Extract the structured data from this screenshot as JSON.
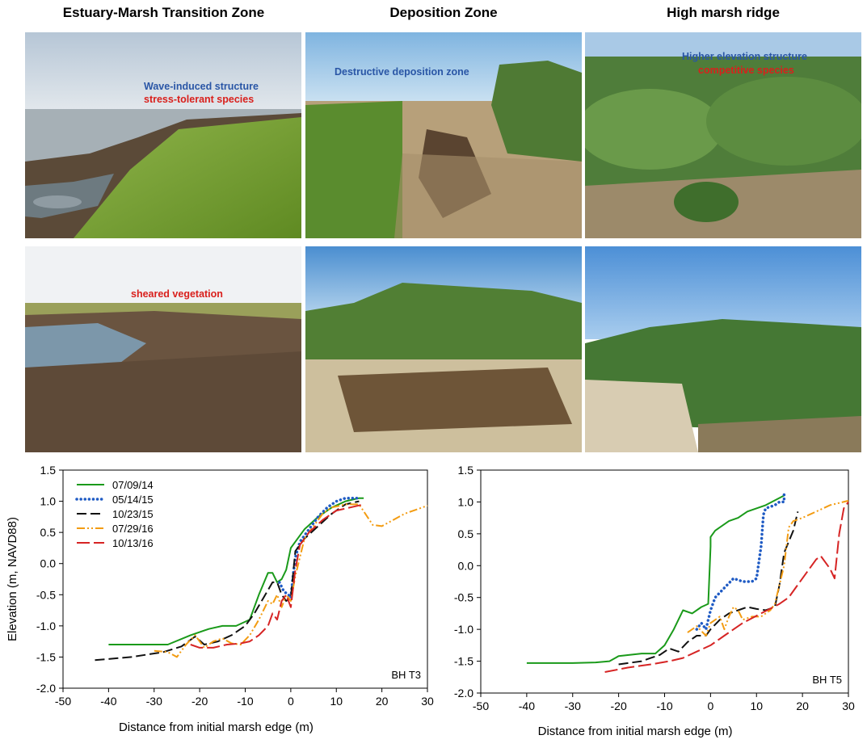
{
  "columns": [
    {
      "title": "Estuary-Marsh Transition Zone"
    },
    {
      "title": "Deposition Zone"
    },
    {
      "title": "High marsh ridge"
    }
  ],
  "photos": {
    "p1": {
      "captions": [
        {
          "text": "Wave-induced structure",
          "color": "#2a56a6"
        },
        {
          "text": "stress-tolerant species",
          "color": "#d9201c"
        }
      ]
    },
    "p2": {
      "captions": [
        {
          "text": "Destructive deposition zone",
          "color": "#2a56a6"
        }
      ]
    },
    "p3": {
      "captions": [
        {
          "text": "Higher elevation structure",
          "color": "#2a56a6"
        },
        {
          "text": "competitive species",
          "color": "#d9201c"
        }
      ]
    },
    "p4": {
      "captions": [
        {
          "text": "sheared vegetation",
          "color": "#d9201c"
        }
      ]
    },
    "p5": {
      "captions": []
    },
    "p6": {
      "captions": []
    }
  },
  "chart_data": [
    {
      "type": "line",
      "panel_label": "BH T3",
      "xlabel": "Distance from initial marsh edge (m)",
      "ylabel": "Elevation (m, NAVD88)",
      "xlim": [
        -50,
        30
      ],
      "ylim": [
        -2.0,
        1.5
      ],
      "xticks": [
        -50,
        -40,
        -30,
        -20,
        -10,
        0,
        10,
        20,
        30
      ],
      "yticks": [
        -2.0,
        -1.5,
        -1.0,
        -0.5,
        0.0,
        0.5,
        1.0,
        1.5
      ],
      "legend_position": "top-left",
      "series": [
        {
          "name": "07/09/14",
          "color": "#1a9a1a",
          "dash": "solid",
          "x": [
            -40,
            -27,
            -22,
            -18,
            -15,
            -12,
            -9,
            -7,
            -5,
            -4,
            -3,
            -2,
            -1,
            0,
            1,
            3,
            6,
            9,
            12,
            15,
            16
          ],
          "y": [
            -1.3,
            -1.3,
            -1.15,
            -1.05,
            -1.0,
            -1.0,
            -0.9,
            -0.5,
            -0.15,
            -0.15,
            -0.3,
            -0.25,
            -0.1,
            0.25,
            0.35,
            0.55,
            0.75,
            0.9,
            1.0,
            1.05,
            1.05
          ]
        },
        {
          "name": "05/14/15",
          "color": "#1f5bc4",
          "dash": "dot",
          "x": [
            -2.5,
            -1.5,
            -0.5,
            0,
            0.5,
            1,
            2,
            3,
            4,
            6,
            8,
            10,
            12,
            14,
            15
          ],
          "y": [
            -0.3,
            -0.45,
            -0.5,
            -0.55,
            -0.2,
            0.1,
            0.35,
            0.45,
            0.55,
            0.75,
            0.9,
            1.0,
            1.05,
            1.05,
            1.05
          ]
        },
        {
          "name": "10/23/15",
          "color": "#111111",
          "dash": "long",
          "x": [
            -43,
            -35,
            -28,
            -24,
            -21,
            -19,
            -16,
            -13,
            -10,
            -8,
            -6,
            -4,
            -3,
            -2,
            -1,
            0,
            1,
            3,
            6,
            9,
            12,
            15
          ],
          "y": [
            -1.55,
            -1.5,
            -1.42,
            -1.33,
            -1.17,
            -1.3,
            -1.25,
            -1.15,
            -1.0,
            -0.8,
            -0.55,
            -0.3,
            -0.3,
            -0.5,
            -0.6,
            -0.55,
            0.2,
            0.4,
            0.6,
            0.8,
            0.95,
            1.0
          ]
        },
        {
          "name": "07/29/16",
          "color": "#f39c12",
          "dash": "dashdotdot",
          "x": [
            -30,
            -27,
            -25,
            -23,
            -21,
            -19,
            -17,
            -15,
            -13,
            -11,
            -9,
            -7,
            -5,
            -4,
            -3,
            -2,
            -1,
            0,
            1,
            3,
            5,
            7,
            9,
            12,
            15,
            18,
            20,
            25,
            30
          ],
          "y": [
            -1.4,
            -1.42,
            -1.5,
            -1.3,
            -1.15,
            -1.35,
            -1.25,
            -1.2,
            -1.28,
            -1.3,
            -1.15,
            -0.9,
            -0.6,
            -0.65,
            -0.5,
            -0.7,
            -0.5,
            -0.6,
            -0.2,
            0.4,
            0.6,
            0.8,
            0.9,
            0.95,
            0.95,
            0.62,
            0.6,
            0.8,
            0.93
          ]
        },
        {
          "name": "10/13/16",
          "color": "#d62424",
          "dash": "dash",
          "x": [
            -22,
            -20,
            -17,
            -14,
            -11,
            -9,
            -7,
            -5,
            -4,
            -3,
            -2,
            -1,
            0,
            1,
            2,
            4,
            7,
            10,
            13,
            16
          ],
          "y": [
            -1.3,
            -1.35,
            -1.35,
            -1.3,
            -1.28,
            -1.25,
            -1.15,
            -1.0,
            -0.8,
            -0.9,
            -0.6,
            -0.5,
            -0.7,
            -0.1,
            0.3,
            0.5,
            0.7,
            0.85,
            0.9,
            0.95
          ]
        }
      ]
    },
    {
      "type": "line",
      "panel_label": "BH T5",
      "xlabel": "Distance from initial marsh edge (m)",
      "ylabel": "",
      "xlim": [
        -50,
        30
      ],
      "ylim": [
        -2.0,
        1.5
      ],
      "xticks": [
        -50,
        -40,
        -30,
        -20,
        -10,
        0,
        10,
        20,
        30
      ],
      "yticks": [
        -2.0,
        -1.5,
        -1.0,
        -0.5,
        0.0,
        0.5,
        1.0,
        1.5
      ],
      "series": [
        {
          "name": "07/09/14",
          "color": "#1a9a1a",
          "dash": "solid",
          "x": [
            -40,
            -30,
            -25,
            -22,
            -20,
            -15,
            -12,
            -10,
            -8,
            -6,
            -4,
            -2,
            -0.5,
            0,
            0,
            1,
            4,
            6,
            8,
            12,
            16
          ],
          "y": [
            -1.53,
            -1.53,
            -1.52,
            -1.5,
            -1.42,
            -1.38,
            -1.38,
            -1.25,
            -1.0,
            -0.7,
            -0.75,
            -0.65,
            -0.6,
            0.3,
            0.45,
            0.55,
            0.7,
            0.75,
            0.85,
            0.95,
            1.1
          ]
        },
        {
          "name": "05/14/15",
          "color": "#1f5bc4",
          "dash": "dot",
          "x": [
            -3,
            -2,
            -1,
            -0.5,
            0,
            1,
            3,
            5,
            7,
            9,
            10,
            11,
            11.5,
            12,
            14,
            15,
            16,
            16
          ],
          "y": [
            -1.0,
            -0.9,
            -1.0,
            -0.85,
            -0.7,
            -0.5,
            -0.35,
            -0.2,
            -0.25,
            -0.25,
            -0.2,
            0.3,
            0.8,
            0.9,
            0.95,
            1.0,
            1.0,
            1.15
          ]
        },
        {
          "name": "10/23/15",
          "color": "#111111",
          "dash": "long",
          "x": [
            -20,
            -15,
            -13,
            -11,
            -9,
            -7,
            -5,
            -3,
            -1,
            0,
            2,
            4,
            6,
            8,
            10,
            12,
            14,
            15,
            16,
            18,
            19
          ],
          "y": [
            -1.55,
            -1.5,
            -1.45,
            -1.4,
            -1.3,
            -1.35,
            -1.2,
            -1.1,
            -1.1,
            -1.0,
            -0.85,
            -0.75,
            -0.7,
            -0.65,
            -0.68,
            -0.7,
            -0.65,
            -0.3,
            0.2,
            0.55,
            0.85
          ]
        },
        {
          "name": "07/29/16",
          "color": "#f39c12",
          "dash": "dashdotdot",
          "x": [
            -5,
            -3,
            -1,
            0,
            2,
            3,
            4,
            5,
            6,
            7,
            9,
            11,
            13,
            14,
            15,
            16,
            17,
            18,
            20,
            23,
            26,
            30
          ],
          "y": [
            -1.05,
            -0.95,
            -1.1,
            -0.9,
            -0.8,
            -1.0,
            -0.8,
            -0.65,
            -0.7,
            -0.85,
            -0.8,
            -0.8,
            -0.7,
            -0.6,
            -0.3,
            0.0,
            0.6,
            0.7,
            0.75,
            0.85,
            0.95,
            1.02
          ]
        },
        {
          "name": "10/13/16",
          "color": "#d62424",
          "dash": "dash",
          "x": [
            -23,
            -18,
            -13,
            -9,
            -6,
            -3,
            0,
            3,
            7,
            11,
            15,
            17,
            19,
            21,
            23,
            24,
            25,
            26,
            27,
            28,
            29,
            30
          ],
          "y": [
            -1.67,
            -1.6,
            -1.55,
            -1.5,
            -1.45,
            -1.35,
            -1.25,
            -1.1,
            -0.9,
            -0.75,
            -0.6,
            -0.5,
            -0.3,
            -0.1,
            0.1,
            0.15,
            0.05,
            -0.05,
            -0.2,
            0.5,
            0.9,
            1.0
          ]
        }
      ]
    }
  ]
}
